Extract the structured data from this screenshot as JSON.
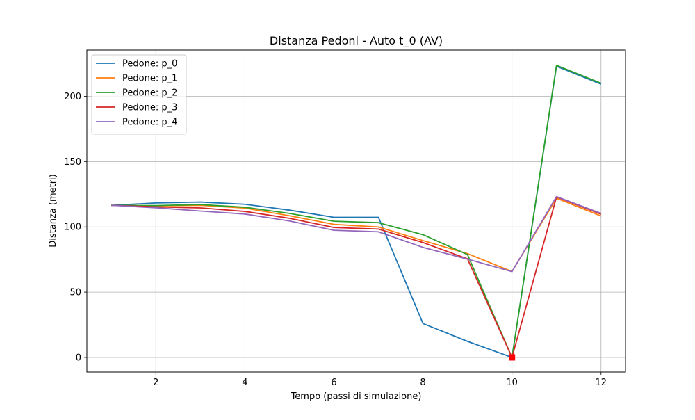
{
  "chart_data": {
    "type": "line",
    "title": "Distanza Pedoni - Auto t_0 (AV)",
    "xlabel": "Tempo (passi di simulazione)",
    "ylabel": "Distanza (metri)",
    "x": [
      1,
      2,
      3,
      4,
      5,
      6,
      7,
      8,
      9,
      10,
      11,
      12
    ],
    "xlim": [
      0.45,
      12.55
    ],
    "ylim": [
      -11.2,
      235.4
    ],
    "xticks": [
      2,
      4,
      6,
      8,
      10,
      12
    ],
    "yticks": [
      0,
      50,
      100,
      150,
      200
    ],
    "grid": true,
    "legend_position": "top-left",
    "series": [
      {
        "name": "Pedone: p_0",
        "color": "#1f77b4",
        "values": [
          116.5,
          118.3,
          119.0,
          117.3,
          112.8,
          107.3,
          107.3,
          26.0,
          12.3,
          0.0,
          223.0,
          209.3
        ]
      },
      {
        "name": "Pedone: p_1",
        "color": "#ff7f0e",
        "values": [
          116.5,
          116.0,
          116.5,
          114.4,
          108.5,
          101.9,
          99.9,
          89.5,
          79.5,
          65.8,
          121.9,
          108.3
        ]
      },
      {
        "name": "Pedone: p_2",
        "color": "#2ca02c",
        "values": [
          116.5,
          116.3,
          117.1,
          115.0,
          110.3,
          104.3,
          103.2,
          94.0,
          78.8,
          0.0,
          223.7,
          210.0
        ]
      },
      {
        "name": "Pedone: p_3",
        "color": "#d62728",
        "values": [
          116.5,
          115.3,
          114.5,
          111.8,
          106.6,
          99.5,
          98.3,
          88.0,
          75.5,
          0.0,
          122.9,
          109.7
        ]
      },
      {
        "name": "Pedone: p_4",
        "color": "#9467bd",
        "values": [
          116.5,
          114.6,
          112.1,
          109.8,
          104.5,
          97.4,
          96.2,
          84.3,
          75.3,
          65.7,
          123.2,
          110.3
        ]
      }
    ],
    "markers": [
      {
        "x": 10,
        "y": 0,
        "color": "#ff0000",
        "shape": "square"
      }
    ]
  }
}
